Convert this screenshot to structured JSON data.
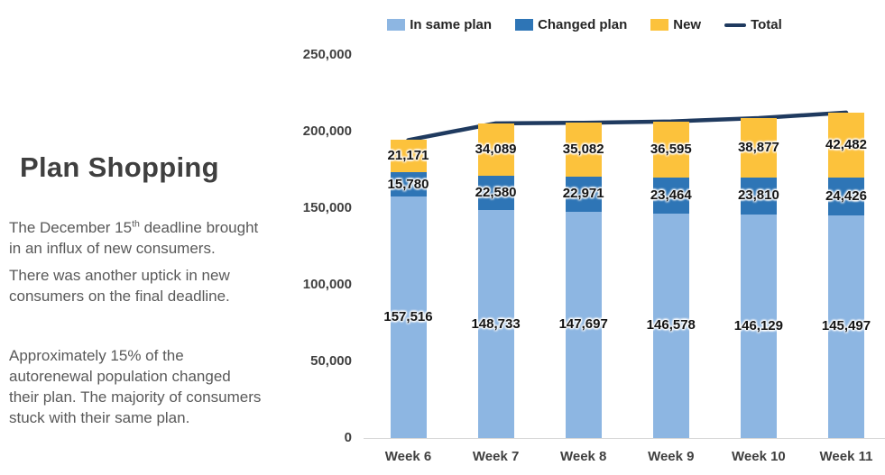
{
  "slide": {
    "background": "#ffffff"
  },
  "left_panel": {
    "title": "Plan Shopping",
    "para1_pre": "The December 15",
    "para1_sup": "th",
    "para1_post": " deadline brought\nin an influx of new consumers.",
    "para2": "There was another uptick in new\nconsumers on the final deadline.",
    "para3": "Approximately 15% of the\nautorenewal population changed\ntheir plan. The majority of consumers\nstuck with their same plan."
  },
  "chart_data": {
    "type": "bar",
    "subtype": "stacked-column-with-total-line",
    "categories": [
      "Week 6",
      "Week 7",
      "Week 8",
      "Week 9",
      "Week 10",
      "Week 11"
    ],
    "series": [
      {
        "name": "In same plan",
        "color": "#8DB6E2",
        "values": [
          157516,
          148733,
          147697,
          146578,
          146129,
          145497
        ]
      },
      {
        "name": "Changed plan",
        "color": "#2E75B6",
        "values": [
          15780,
          22580,
          22971,
          23464,
          23810,
          24426
        ]
      },
      {
        "name": "New",
        "color": "#FCC23C",
        "values": [
          21171,
          34089,
          35082,
          36595,
          38877,
          42482
        ]
      }
    ],
    "line_series": {
      "name": "Total",
      "color": "#1F3A5F",
      "values": [
        194467,
        205402,
        205750,
        206637,
        208816,
        212405
      ]
    },
    "ylim": [
      0,
      250000
    ],
    "y_ticks": [
      "0",
      "50,000",
      "100,000",
      "150,000",
      "200,000",
      "250,000"
    ],
    "grid": false,
    "legend_position": "top",
    "legend": [
      {
        "label": "In same plan",
        "color": "#8DB6E2",
        "type": "swatch"
      },
      {
        "label": "Changed plan",
        "color": "#2E75B6",
        "type": "swatch"
      },
      {
        "label": "New",
        "color": "#FCC23C",
        "type": "swatch"
      },
      {
        "label": "Total",
        "color": "#1F3A5F",
        "type": "line"
      }
    ]
  }
}
